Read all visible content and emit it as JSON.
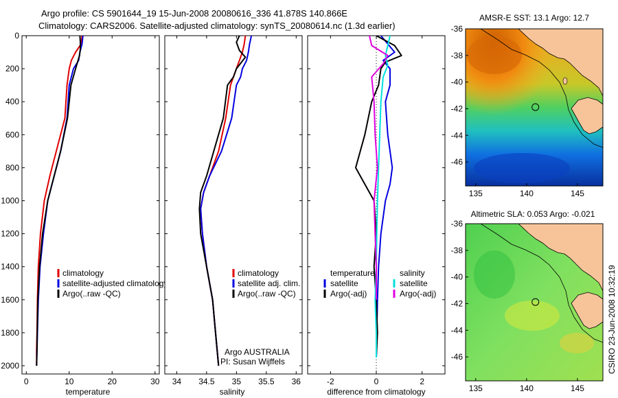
{
  "header": {
    "line1": "Argo profile: CS 5901644_19 15-Jun-2008 20080616_336 41.878S 140.866E",
    "line2": "Climatology: CARS2006. Satellite-adjusted climatology: synTS_20080614.nc (1.3d earlier)"
  },
  "side_label": "CSIRO 23-Jun-2008 10:32:19",
  "colors": {
    "red": "#e00000",
    "blue": "#0000e0",
    "black": "#000000",
    "cyan": "#00e0e0",
    "magenta": "#e000e0"
  },
  "chart_data": [
    {
      "type": "line",
      "xlabel": "temperature",
      "xlim": [
        -1,
        31
      ],
      "ylim": [
        2050,
        0
      ],
      "xticks": [
        0,
        10,
        20,
        30
      ],
      "yticks": [
        0,
        200,
        400,
        600,
        800,
        1000,
        1200,
        1400,
        1600,
        1800,
        2000
      ],
      "legend": {
        "position": "center-right",
        "entries": [
          "climatology",
          "satellite-adjusted climatology",
          "Argo(..raw -QC)"
        ]
      },
      "series": [
        {
          "name": "climatology",
          "color": "red",
          "x": [
            13,
            12.8,
            11.5,
            10.5,
            10,
            9.5,
            9,
            7,
            5.5,
            4.2,
            3.3,
            2.8,
            2.6,
            2.5,
            2.4,
            2.4
          ],
          "y": [
            0,
            50,
            100,
            150,
            200,
            300,
            500,
            700,
            850,
            1000,
            1200,
            1400,
            1600,
            1800,
            1900,
            2000
          ]
        },
        {
          "name": "satellite-adjusted climatology",
          "color": "blue",
          "x": [
            13.2,
            13,
            12.5,
            12.2,
            11,
            10,
            9.5,
            8,
            6.5,
            5,
            4,
            3.2,
            2.8,
            2.6,
            2.5,
            2.4
          ],
          "y": [
            0,
            50,
            100,
            150,
            200,
            300,
            500,
            700,
            850,
            1000,
            1200,
            1400,
            1600,
            1800,
            1900,
            2000
          ]
        },
        {
          "name": "Argo(..raw -QC)",
          "color": "black",
          "x": [
            12.5,
            12.6,
            12.6,
            12.4,
            11.5,
            10.4,
            9.6,
            8,
            6.5,
            5,
            3.8,
            3.1,
            2.7,
            2.55,
            2.5,
            2.4
          ],
          "y": [
            0,
            40,
            80,
            120,
            200,
            300,
            500,
            700,
            850,
            1000,
            1200,
            1400,
            1600,
            1800,
            1900,
            2000
          ]
        }
      ]
    },
    {
      "type": "line",
      "xlabel": "salinity",
      "xlim": [
        33.8,
        36.1
      ],
      "ylim": [
        2050,
        0
      ],
      "xticks": [
        34,
        34.5,
        35,
        35.5,
        36
      ],
      "annotations": [
        "Argo AUSTRALIA",
        "PI: Susan Wijffels"
      ],
      "legend": {
        "position": "center-right",
        "entries": [
          "climatology",
          "satellite adj. clim.",
          "Argo(..raw -QC)"
        ]
      },
      "series": [
        {
          "name": "climatology",
          "color": "red",
          "x": [
            35.15,
            35.13,
            35.1,
            35.05,
            35,
            34.95,
            34.9,
            34.82,
            34.7,
            34.55,
            34.45,
            34.4,
            34.43,
            34.5,
            34.6,
            34.65,
            34.7
          ],
          "y": [
            0,
            50,
            100,
            150,
            200,
            250,
            300,
            500,
            700,
            850,
            950,
            1050,
            1200,
            1400,
            1600,
            1800,
            2000
          ]
        },
        {
          "name": "satellite adj. clim.",
          "color": "blue",
          "x": [
            35.25,
            35.22,
            35.2,
            35.17,
            35.1,
            35.07,
            35.0,
            34.92,
            34.75,
            34.55,
            34.45,
            34.4,
            34.43,
            34.5,
            34.6,
            34.65,
            34.7
          ],
          "y": [
            0,
            50,
            100,
            150,
            200,
            250,
            300,
            500,
            700,
            850,
            950,
            1050,
            1200,
            1400,
            1600,
            1800,
            2000
          ]
        },
        {
          "name": "Argo(..raw -QC)",
          "color": "black",
          "x": [
            35.05,
            35.0,
            35.05,
            35.15,
            35.0,
            34.95,
            34.85,
            34.78,
            34.62,
            34.5,
            34.4,
            34.38,
            34.4,
            34.5,
            34.6,
            34.65,
            34.7
          ],
          "y": [
            0,
            40,
            90,
            130,
            200,
            250,
            300,
            500,
            700,
            850,
            950,
            1050,
            1200,
            1400,
            1600,
            1800,
            2000
          ]
        }
      ]
    },
    {
      "type": "line",
      "xlabel": "difference from climatology",
      "xlim": [
        -3,
        3
      ],
      "ylim": [
        2050,
        0
      ],
      "xticks": [
        -2,
        0,
        2
      ],
      "legend": {
        "position": "center-right",
        "temperature_title": "temperature",
        "salinity_title": "salinity",
        "entries": [
          "satellite",
          "Argo(-adj)",
          "satellite",
          "Argo(-adj)"
        ]
      },
      "series": [
        {
          "name": "satellite",
          "color": "blue",
          "x": [
            0.2,
            0.5,
            0.8,
            0.3,
            0.6,
            0.6,
            0.4,
            0.5,
            0.7,
            0.6,
            0.4,
            0.2,
            0.1,
            0.05,
            0.02,
            0
          ],
          "y": [
            0,
            50,
            100,
            150,
            200,
            300,
            400,
            600,
            800,
            900,
            1000,
            1200,
            1400,
            1600,
            1800,
            1950
          ]
        },
        {
          "name": "Argo(-adj)",
          "color": "black",
          "x": [
            0,
            0.8,
            1.1,
            0.4,
            0.2,
            0.1,
            -0.2,
            -0.5,
            -0.9,
            -0.5,
            -0.1,
            0,
            -0.1,
            0,
            0.05,
            0
          ],
          "y": [
            0,
            60,
            120,
            160,
            200,
            300,
            400,
            600,
            800,
            900,
            1000,
            1200,
            1400,
            1600,
            1800,
            1950
          ]
        },
        {
          "name": "satellite",
          "color": "cyan",
          "x": [
            0.6,
            0.5,
            0.4,
            0.5,
            0.3,
            0.2,
            0.15,
            0.1,
            0.05,
            0.02,
            0,
            -0.05,
            0,
            0
          ],
          "y": [
            0,
            60,
            120,
            180,
            250,
            400,
            600,
            800,
            1000,
            1200,
            1400,
            1600,
            1800,
            1950
          ]
        },
        {
          "name": "Argo(-adj)",
          "color": "magenta",
          "x": [
            -0.3,
            -0.2,
            0.5,
            0.3,
            -0.2,
            -0.1,
            -0.05,
            0.05,
            -0.1,
            -0.05,
            0,
            0
          ],
          "y": [
            0,
            60,
            120,
            170,
            250,
            400,
            600,
            800,
            1000,
            1200,
            1400,
            1600
          ]
        }
      ]
    },
    {
      "type": "heatmap",
      "title": "AMSR-E SST: 13.1 Argo: 12.7",
      "xlim": [
        134,
        147.5
      ],
      "ylim": [
        -47.8,
        -36
      ],
      "xticks": [
        135,
        140,
        145
      ],
      "yticks": [
        -36,
        -38,
        -40,
        -42,
        -44,
        -46
      ],
      "marker": {
        "lon": 140.866,
        "lat": -41.878
      }
    },
    {
      "type": "heatmap",
      "title": "Altimetric SLA: 0.053 Argo: -0.021",
      "xlim": [
        134,
        147.5
      ],
      "ylim": [
        -47.8,
        -36
      ],
      "xticks": [
        135,
        140,
        145
      ],
      "yticks": [
        -36,
        -38,
        -40,
        -42,
        -44,
        -46
      ],
      "marker": {
        "lon": 140.866,
        "lat": -41.878
      }
    }
  ]
}
